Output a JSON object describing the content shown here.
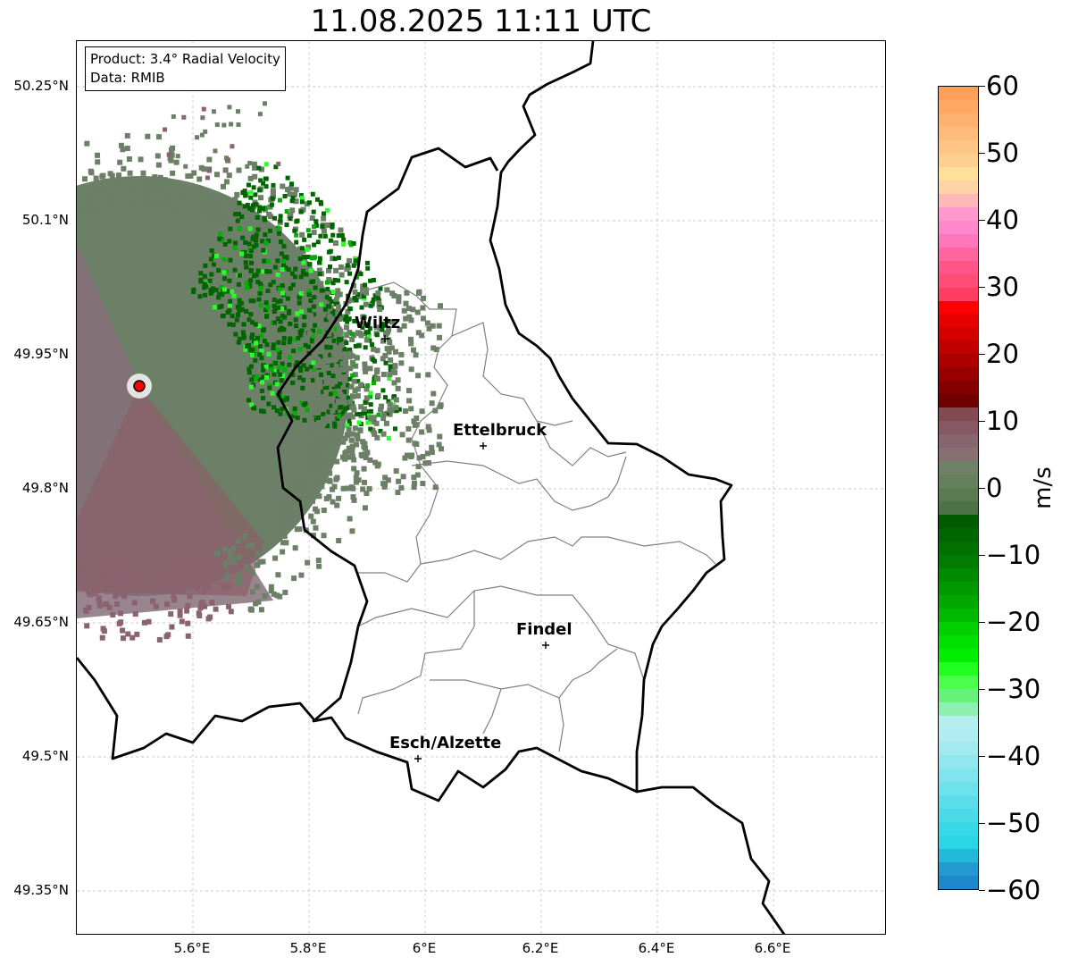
{
  "title": "11.08.2025 11:11 UTC",
  "info": {
    "product": "Product: 3.4° Radial Velocity",
    "data": "Data: RMIB"
  },
  "y_ticks": [
    "50.25°N",
    "50.1°N",
    "49.95°N",
    "49.8°N",
    "49.65°N",
    "49.5°N",
    "49.35°N"
  ],
  "x_ticks": [
    "5.6°E",
    "5.8°E",
    "6°E",
    "6.2°E",
    "6.4°E",
    "6.6°E"
  ],
  "cities": [
    {
      "name": "Wiltz"
    },
    {
      "name": "Ettelbruck"
    },
    {
      "name": "Findel"
    },
    {
      "name": "Esch/Alzette"
    }
  ],
  "colorbar": {
    "label": "m/s",
    "ticks": [
      "60",
      "50",
      "40",
      "30",
      "20",
      "10",
      "0",
      "−10",
      "−20",
      "−30",
      "−40",
      "−50",
      "−60"
    ],
    "colors": [
      "#ff9f5c",
      "#ffa865",
      "#ffb170",
      "#ffbb7a",
      "#ffc585",
      "#ffcf8f",
      "#ffe099",
      "#ffd3a8",
      "#ffb8b8",
      "#ff99cc",
      "#ff88cc",
      "#ff77bb",
      "#ff66a0",
      "#ff5588",
      "#ff4d77",
      "#ff3d60",
      "#ff0000",
      "#e80000",
      "#d40000",
      "#c00000",
      "#ac0000",
      "#980000",
      "#840000",
      "#700000",
      "#844a52",
      "#885862",
      "#886670",
      "#887070",
      "#6f8268",
      "#64805c",
      "#5a7a50",
      "#4e7248",
      "#005a00",
      "#006600",
      "#007000",
      "#007d00",
      "#008a00",
      "#009800",
      "#00a800",
      "#00b800",
      "#00d000",
      "#00e000",
      "#00ee00",
      "#20ff20",
      "#4cff4c",
      "#66f27a",
      "#8ef0b0",
      "#b6eef0"
    ],
    "colors_low": [
      "#b0ecf0",
      "#a2eaf0",
      "#92e6ee",
      "#80e4ec",
      "#6ee2ea",
      "#5cdeea",
      "#4adae8",
      "#38d8e6",
      "#2ad6e4",
      "#22b8d8",
      "#209ad0",
      "#1e88cc"
    ]
  },
  "radar_site_color": "#ff0000"
}
